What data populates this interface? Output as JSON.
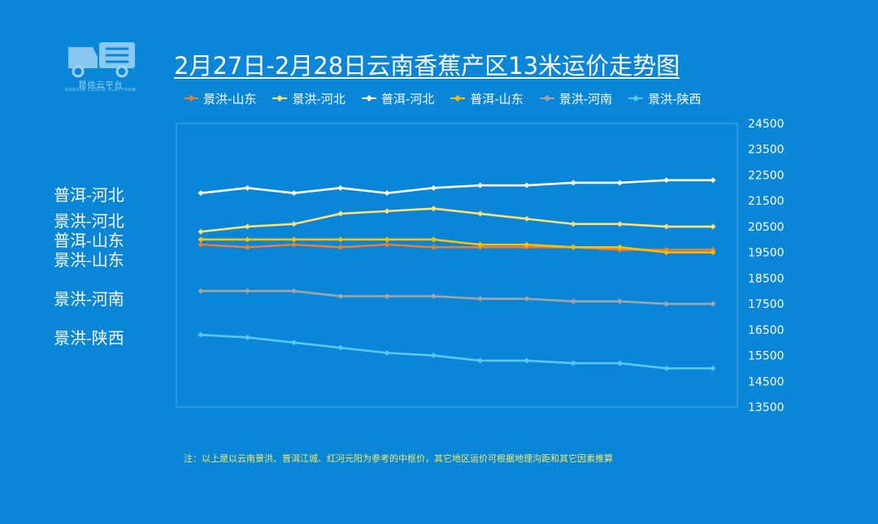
{
  "logo": {
    "text": "昆信云平台",
    "subtext": "KUNXIN CLOUD PLATFORM"
  },
  "title": "2月27日-2月28日云南香蕉产区13米运价走势图",
  "side_labels": [
    "普洱-河北",
    "景洪-河北",
    "普洱-山东",
    "景洪-山东",
    "景洪-河南",
    "景洪-陕西"
  ],
  "note": "注：以上是以云南景洪、普洱江城、红河元阳为参考的中枢价，其它地区运价可根据地理沟距和其它因素推算",
  "chart_data": {
    "type": "line",
    "title": "2月27日-2月28日云南香蕉产区13米运价走势图",
    "x": [
      1,
      2,
      3,
      4,
      5,
      6,
      7,
      8,
      9,
      10,
      11,
      12
    ],
    "ylim": [
      13500,
      24500
    ],
    "yticks": [
      13500,
      14500,
      15500,
      16500,
      17500,
      18500,
      19500,
      20500,
      21500,
      22500,
      23500,
      24500
    ],
    "ytick_labels": [
      "13500",
      "14500",
      "15500",
      "16500",
      "17500",
      "18500",
      "19500",
      "20500",
      "21500",
      "22500",
      "23500",
      "24500"
    ],
    "y_axis_position": "right",
    "grid": false,
    "legend_position": "top",
    "series": [
      {
        "name": "景洪-山东",
        "color": "#ed7d31",
        "values": [
          19800,
          19700,
          19800,
          19700,
          19800,
          19700,
          19700,
          19700,
          19700,
          19600,
          19600,
          19600
        ]
      },
      {
        "name": "景洪-河北",
        "color": "#ffe070",
        "values": [
          20300,
          20500,
          20600,
          21000,
          21100,
          21200,
          21000,
          20800,
          20600,
          20600,
          20500,
          20500
        ]
      },
      {
        "name": "普洱-河北",
        "color": "#ffffff",
        "values": [
          21800,
          22000,
          21800,
          22000,
          21800,
          22000,
          22100,
          22100,
          22200,
          22200,
          22300,
          22300
        ]
      },
      {
        "name": "普洱-山东",
        "color": "#ffc000",
        "values": [
          20000,
          20000,
          20000,
          20000,
          20000,
          20000,
          19800,
          19800,
          19700,
          19700,
          19500,
          19500
        ]
      },
      {
        "name": "景洪-河南",
        "color": "#a5a5a5",
        "values": [
          18000,
          18000,
          18000,
          17800,
          17800,
          17800,
          17700,
          17700,
          17600,
          17600,
          17500,
          17500
        ]
      },
      {
        "name": "景洪-陕西",
        "color": "#5bc8f5",
        "values": [
          16300,
          16200,
          16000,
          15800,
          15600,
          15500,
          15300,
          15300,
          15200,
          15200,
          15000,
          15000
        ]
      }
    ]
  }
}
